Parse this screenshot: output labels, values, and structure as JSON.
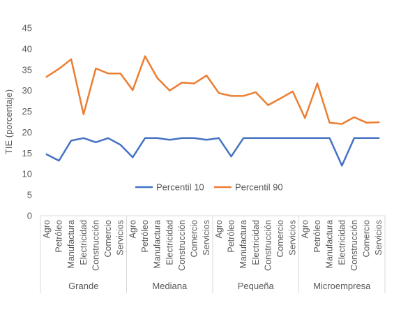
{
  "chart_data": {
    "type": "line",
    "title": "",
    "xlabel": "",
    "ylabel": "TIE (porcentaje)",
    "ylim": [
      0,
      45
    ],
    "yticks": [
      0,
      5,
      10,
      15,
      20,
      25,
      30,
      35,
      40,
      45
    ],
    "grid": false,
    "legend_position": "center-inside",
    "groups": [
      {
        "name": "Grande",
        "categories": [
          "Agro",
          "Petróleo",
          "Manufactura",
          "Electricidad",
          "Construcción",
          "Comercio",
          "Servicios"
        ]
      },
      {
        "name": "Mediana",
        "categories": [
          "Agro",
          "Petróleo",
          "Manufactura",
          "Electricidad",
          "Construcción",
          "Comercio",
          "Servicios"
        ]
      },
      {
        "name": "Pequeña",
        "categories": [
          "Agro",
          "Petróleo",
          "Manufactura",
          "Electricidad",
          "Construcción",
          "Comercio",
          "Servicios"
        ]
      },
      {
        "name": "Microempresa",
        "categories": [
          "Agro",
          "Petróleo",
          "Manufactura",
          "Electricidad",
          "Construcción",
          "Comercio",
          "Servicios"
        ]
      }
    ],
    "series": [
      {
        "name": "Percentil 10",
        "color": "#4472c4",
        "values": [
          14.7,
          13.2,
          18.0,
          18.6,
          17.6,
          18.6,
          17.0,
          14.0,
          18.6,
          18.6,
          18.2,
          18.6,
          18.6,
          18.2,
          18.6,
          14.2,
          18.6,
          18.6,
          18.6,
          18.6,
          18.6,
          18.6,
          18.6,
          18.6,
          12.0,
          18.6,
          18.6,
          18.6
        ]
      },
      {
        "name": "Percentil 90",
        "color": "#ed7d31",
        "values": [
          33.3,
          35.2,
          37.5,
          24.3,
          35.3,
          34.1,
          34.1,
          30.1,
          38.2,
          33.0,
          30.0,
          31.9,
          31.7,
          33.6,
          29.4,
          28.7,
          28.7,
          29.6,
          26.5,
          28.1,
          29.8,
          23.4,
          31.7,
          22.3,
          22.0,
          23.6,
          22.3,
          22.4
        ]
      }
    ]
  }
}
